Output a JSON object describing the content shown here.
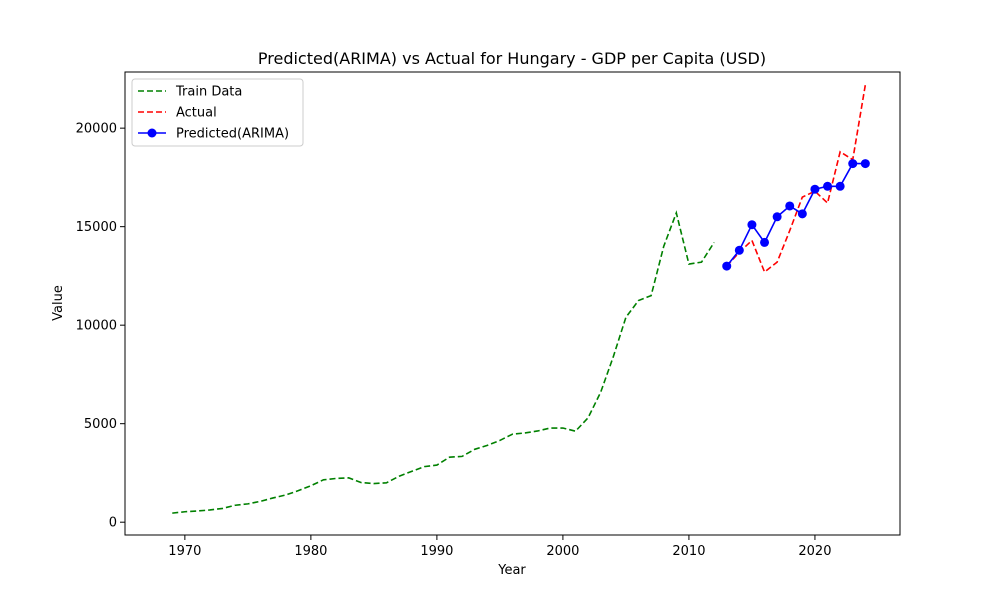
{
  "chart_data": {
    "type": "line",
    "title": "Predicted(ARIMA) vs Actual for Hungary - GDP per Capita (USD)",
    "xlabel": "Year",
    "ylabel": "Value",
    "xlim": [
      1965.25,
      2026.75
    ],
    "ylim": [
      -650,
      22850
    ],
    "xticks": [
      1970,
      1980,
      1990,
      2000,
      2010,
      2020
    ],
    "yticks": [
      0,
      5000,
      10000,
      15000,
      20000
    ],
    "grid": false,
    "legend_position": "top-left",
    "series": [
      {
        "name": "Train Data",
        "style": "dashed",
        "color": "#008000",
        "marker": "none",
        "x": [
          1969,
          1970,
          1971,
          1972,
          1973,
          1974,
          1975,
          1976,
          1977,
          1978,
          1979,
          1980,
          1981,
          1982,
          1983,
          1984,
          1985,
          1986,
          1987,
          1988,
          1989,
          1990,
          1991,
          1992,
          1993,
          1994,
          1995,
          1996,
          1997,
          1998,
          1999,
          2000,
          2001,
          2002,
          2003,
          2004,
          2005,
          2006,
          2007,
          2008,
          2009,
          2010,
          2011,
          2012
        ],
        "y": [
          460,
          530,
          570,
          620,
          700,
          860,
          930,
          1060,
          1230,
          1380,
          1600,
          1850,
          2150,
          2220,
          2250,
          2010,
          1960,
          2000,
          2330,
          2580,
          2820,
          2900,
          3300,
          3340,
          3700,
          3900,
          4150,
          4470,
          4530,
          4630,
          4780,
          4780,
          4620,
          5300,
          6600,
          8400,
          10400,
          11250,
          11500,
          14000,
          15700,
          13100,
          13200,
          14200
        ]
      },
      {
        "name": "Actual",
        "style": "dashed",
        "color": "#ff0000",
        "marker": "none",
        "x": [
          2013,
          2014,
          2015,
          2016,
          2017,
          2018,
          2019,
          2020,
          2021,
          2022,
          2023,
          2024
        ],
        "y": [
          13000,
          13700,
          14300,
          12700,
          13200,
          14800,
          16500,
          16800,
          16200,
          18800,
          18400,
          22200
        ]
      },
      {
        "name": "Predicted(ARIMA)",
        "style": "solid",
        "color": "#0000ff",
        "marker": "circle",
        "x": [
          2013,
          2014,
          2015,
          2016,
          2017,
          2018,
          2019,
          2020,
          2021,
          2022,
          2023,
          2024
        ],
        "y": [
          13000,
          13800,
          15100,
          14200,
          15500,
          16050,
          15650,
          16900,
          17050,
          17050,
          18200,
          18200
        ]
      }
    ]
  }
}
